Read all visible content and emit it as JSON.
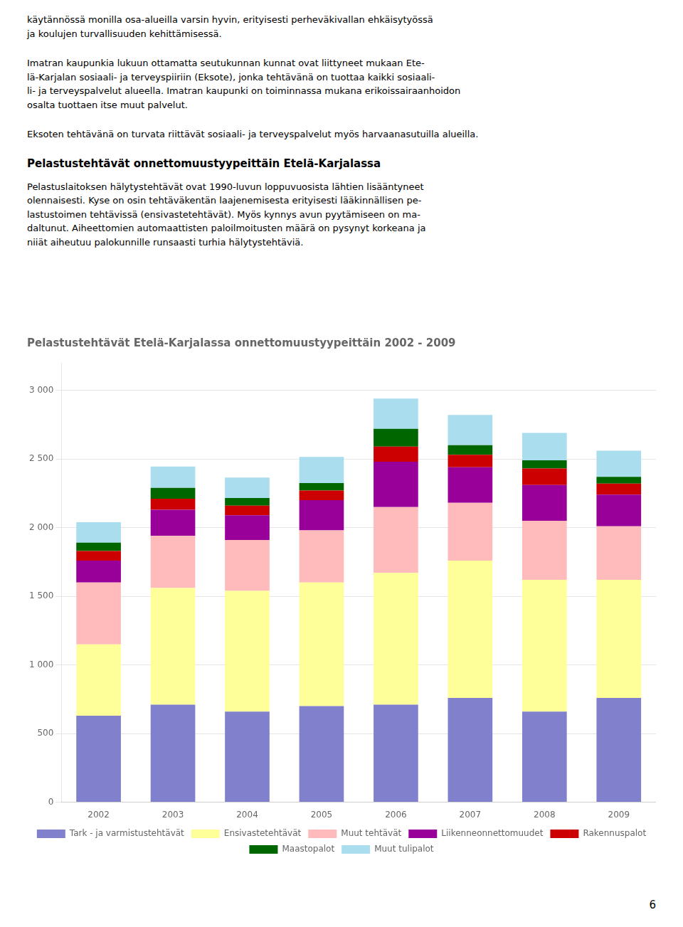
{
  "page_text": [
    {
      "text": "käytännössä monilla osa-alueilla varsin hyvin, erityisesti perheväkivallan ehkäisytyössä\nja koulujen turvallisuuden kehittämisessä.",
      "heading": false
    },
    {
      "text": "Imatran kaupunkia lukuun ottamatta seutukunnan kunnat ovat liittyneet mukaan Ete-\nlä-Karjalan sosiaali- ja terveyspiiriin (Eksote), jonka tehtävänä on tuottaa kaikki sosiaali-\nli- ja terveyspalvelut alueella. Imatran kaupunki on toiminnassa mukana erikoissairaanhoidon\nosalta tuottaen itse muut palvelut.",
      "heading": false
    },
    {
      "text": "Eksoten tehtävänä on turvata riittävät sosiaali- ja terveyspalvelut myös harvaanasutuilla alueilla.",
      "heading": false
    },
    {
      "text": "Pelastustehtävät onnettomuustyypeittäin Etelä-Karjalassa",
      "heading": true
    },
    {
      "text": "Pelastuslaitoksen hälytystehtävät ovat 1990-luvun loppuvuosista lähtien lisääntyneet\nolennaisesti. Kyse on osin tehtäväkentän laajenemisesta erityisesti lääkinnällisen pe-\nlastustoimen tehtävissä (ensivastetehtävät). Myös kynnys avun pyytämiseen on ma-\ndaltunut. Aiheettomien automaattisten paloilmoitusten määrä on pysynyt korkeana ja\nniiät aiheutuu palokunnille runsaasti turhia hälytystehtäviä.",
      "heading": false
    }
  ],
  "page_number": "6",
  "chart_data": {
    "type": "bar",
    "title": "Pelastustehtävät Etelä-Karjalassa onnettomuustyypeittäin 2002 - 2009",
    "categories": [
      "2002",
      "2003",
      "2004",
      "2005",
      "2006",
      "2007",
      "2008",
      "2009"
    ],
    "series": [
      {
        "name": "Tark - ja varmistustehtävät",
        "color": "#8080cc",
        "values": [
          630,
          710,
          660,
          700,
          710,
          760,
          660,
          760
        ]
      },
      {
        "name": "Ensivastetehtävät",
        "color": "#ffff99",
        "values": [
          520,
          850,
          880,
          900,
          960,
          1000,
          960,
          860
        ]
      },
      {
        "name": "Muut tehtävät",
        "color": "#ffbbbb",
        "values": [
          450,
          380,
          370,
          380,
          480,
          420,
          430,
          390
        ]
      },
      {
        "name": "Liikenneonnettomuudet",
        "color": "#990099",
        "values": [
          160,
          190,
          180,
          220,
          330,
          260,
          260,
          230
        ]
      },
      {
        "name": "Rakennuspalot",
        "color": "#cc0000",
        "values": [
          70,
          80,
          70,
          70,
          110,
          90,
          120,
          80
        ]
      },
      {
        "name": "Maastopalot",
        "color": "#006600",
        "values": [
          60,
          80,
          55,
          55,
          130,
          70,
          60,
          50
        ]
      },
      {
        "name": "Muut tulipalot",
        "color": "#aaddee",
        "values": [
          150,
          155,
          150,
          190,
          220,
          220,
          200,
          190
        ]
      }
    ],
    "stacked": true,
    "ylim": [
      0,
      3200
    ],
    "yticks": [
      0,
      500,
      {
        "value": 1000,
        "label": "1 000"
      },
      {
        "value": 1500,
        "label": "1 500"
      },
      {
        "value": 2000,
        "label": "2 000"
      },
      {
        "value": 2500,
        "label": "2 500"
      },
      {
        "value": 3000,
        "label": "3 000"
      }
    ],
    "grid": true,
    "legend": "bottom"
  }
}
